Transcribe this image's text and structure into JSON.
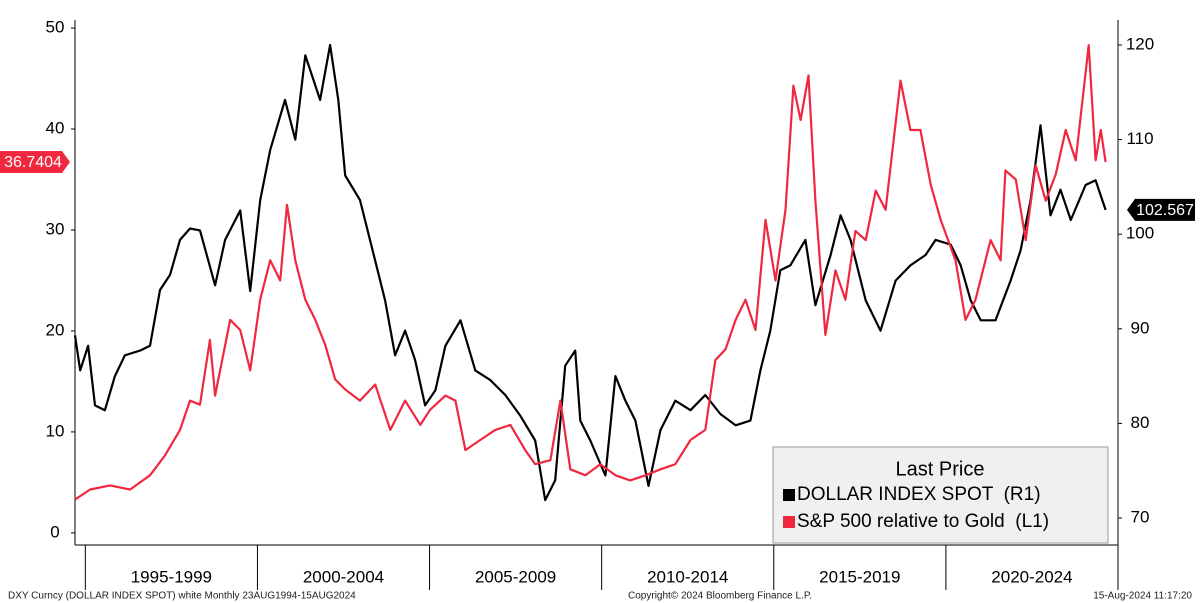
{
  "chart_data": {
    "type": "line",
    "legend_title": "Last Price",
    "footer_left": "DXY Curncy (DOLLAR INDEX SPOT) white  Monthly 23AUG1994-15AUG2024",
    "footer_center": "Copyright© 2024 Bloomberg Finance L.P.",
    "footer_right": "15-Aug-2024 11:17:20",
    "xlim": [
      1994.7,
      2025
    ],
    "x_bands": [
      {
        "label": "1995-1999",
        "start": 1995,
        "end": 2000
      },
      {
        "label": "2000-2004",
        "start": 2000,
        "end": 2005
      },
      {
        "label": "2005-2009",
        "start": 2005,
        "end": 2010
      },
      {
        "label": "2010-2014",
        "start": 2010,
        "end": 2015
      },
      {
        "label": "2015-2019",
        "start": 2015,
        "end": 2020
      },
      {
        "label": "2020-2024",
        "start": 2020,
        "end": 2025
      }
    ],
    "ylim": [
      -1.2,
      50.8
    ],
    "yticks": [
      0,
      10,
      20,
      30,
      40,
      50
    ],
    "y2lim": [
      67.15,
      122.64
    ],
    "y2ticks": [
      70,
      80,
      90,
      100,
      110,
      120
    ],
    "grid": false,
    "series": [
      {
        "name": "DOLLAR INDEX SPOT  (R1)",
        "color": "#000000",
        "axis": "y2",
        "tag_text_color": "#ffffff",
        "x": [
          1994.7,
          1994.85,
          1995.08,
          1995.28,
          1995.57,
          1995.86,
          1996.15,
          1996.59,
          1996.88,
          1997.17,
          1997.46,
          1997.75,
          1998.04,
          1998.33,
          1998.77,
          1999.06,
          1999.5,
          1999.79,
          2000.08,
          2000.37,
          2000.8,
          2001.1,
          2001.39,
          2001.82,
          2002.11,
          2002.35,
          2002.55,
          2002.98,
          2003.42,
          2003.71,
          2004.0,
          2004.29,
          2004.58,
          2004.87,
          2005.17,
          2005.46,
          2005.9,
          2006.33,
          2006.76,
          2007.2,
          2007.64,
          2008.07,
          2008.36,
          2008.65,
          2008.94,
          2009.23,
          2009.38,
          2009.67,
          2010.11,
          2010.4,
          2010.69,
          2010.98,
          2011.36,
          2011.71,
          2012.14,
          2012.58,
          2013.01,
          2013.45,
          2013.89,
          2014.32,
          2014.61,
          2014.9,
          2015.19,
          2015.48,
          2015.92,
          2016.21,
          2016.65,
          2016.94,
          2017.23,
          2017.67,
          2018.1,
          2018.54,
          2018.97,
          2019.41,
          2019.7,
          2020.14,
          2020.43,
          2020.72,
          2021.01,
          2021.44,
          2021.88,
          2022.17,
          2022.46,
          2022.75,
          2023.04,
          2023.33,
          2023.63,
          2024.06,
          2024.35,
          2024.64
        ],
        "values": [
          89.3,
          85.6,
          88.2,
          81.9,
          81.4,
          85.0,
          87.2,
          87.7,
          88.2,
          94.1,
          95.7,
          99.4,
          100.6,
          100.4,
          94.6,
          99.4,
          102.5,
          94.0,
          103.6,
          108.9,
          114.2,
          110.0,
          118.9,
          114.2,
          120.0,
          114.2,
          106.2,
          103.6,
          97.2,
          93.0,
          87.2,
          89.8,
          86.7,
          81.9,
          83.5,
          88.2,
          90.9,
          85.6,
          84.6,
          83.0,
          80.8,
          78.2,
          71.9,
          74.0,
          86.1,
          87.7,
          80.3,
          78.2,
          74.5,
          85.0,
          82.4,
          80.3,
          73.4,
          79.3,
          82.4,
          81.4,
          83.0,
          81.0,
          79.8,
          80.3,
          85.6,
          89.8,
          96.2,
          96.7,
          99.4,
          92.5,
          97.8,
          102.0,
          99.4,
          93.0,
          89.8,
          95.1,
          96.7,
          97.8,
          99.4,
          98.9,
          96.7,
          93.0,
          90.9,
          90.9,
          95.1,
          98.3,
          103.6,
          111.5,
          102.0,
          104.7,
          101.5,
          105.2,
          105.7,
          102.567
        ]
      },
      {
        "name": "S&P 500 relative to Gold  (L1)",
        "color": "#f0283f",
        "axis": "y",
        "tag_text_color": "#ffffff",
        "x": [
          1994.7,
          1995.14,
          1995.72,
          1996.3,
          1996.88,
          1997.32,
          1997.75,
          1998.04,
          1998.33,
          1998.62,
          1998.77,
          1999.21,
          1999.5,
          1999.79,
          2000.08,
          2000.37,
          2000.66,
          2000.86,
          2001.1,
          2001.39,
          2001.68,
          2001.97,
          2002.26,
          2002.55,
          2002.98,
          2003.42,
          2003.86,
          2004.29,
          2004.73,
          2005.02,
          2005.46,
          2005.75,
          2006.04,
          2006.47,
          2006.91,
          2007.35,
          2007.78,
          2008.07,
          2008.51,
          2008.8,
          2009.09,
          2009.53,
          2009.96,
          2010.4,
          2010.83,
          2011.27,
          2011.71,
          2012.14,
          2012.58,
          2013.01,
          2013.3,
          2013.6,
          2013.89,
          2014.18,
          2014.47,
          2014.76,
          2015.05,
          2015.34,
          2015.57,
          2015.78,
          2016.01,
          2016.21,
          2016.5,
          2016.79,
          2017.08,
          2017.37,
          2017.67,
          2017.96,
          2018.25,
          2018.68,
          2018.97,
          2019.26,
          2019.56,
          2019.85,
          2020.28,
          2020.57,
          2020.86,
          2021.3,
          2021.59,
          2021.73,
          2022.03,
          2022.32,
          2022.61,
          2022.9,
          2023.19,
          2023.48,
          2023.77,
          2024.15,
          2024.35,
          2024.5,
          2024.64
        ],
        "values": [
          3.3,
          4.3,
          4.7,
          4.3,
          5.7,
          7.7,
          10.2,
          13.1,
          12.7,
          19.1,
          13.6,
          21.1,
          20.1,
          16.1,
          23.1,
          27.0,
          25.0,
          32.5,
          27.0,
          23.1,
          21.1,
          18.6,
          15.2,
          14.2,
          13.1,
          14.7,
          10.2,
          13.1,
          10.7,
          12.2,
          13.6,
          13.1,
          8.2,
          9.2,
          10.2,
          10.7,
          8.2,
          6.8,
          7.2,
          13.1,
          6.3,
          5.7,
          6.8,
          5.7,
          5.2,
          5.7,
          6.3,
          6.8,
          9.2,
          10.2,
          17.1,
          18.2,
          21.1,
          23.1,
          20.1,
          31.0,
          25.0,
          32.0,
          44.3,
          40.9,
          45.3,
          32.9,
          19.6,
          26.0,
          23.1,
          29.9,
          29.0,
          33.9,
          32.0,
          44.8,
          39.9,
          39.9,
          34.5,
          31.0,
          27.0,
          21.1,
          23.1,
          29.0,
          27.0,
          35.9,
          35.0,
          29.0,
          36.4,
          32.9,
          35.5,
          39.9,
          36.9,
          48.3,
          36.9,
          39.9,
          36.7404
        ]
      }
    ]
  }
}
